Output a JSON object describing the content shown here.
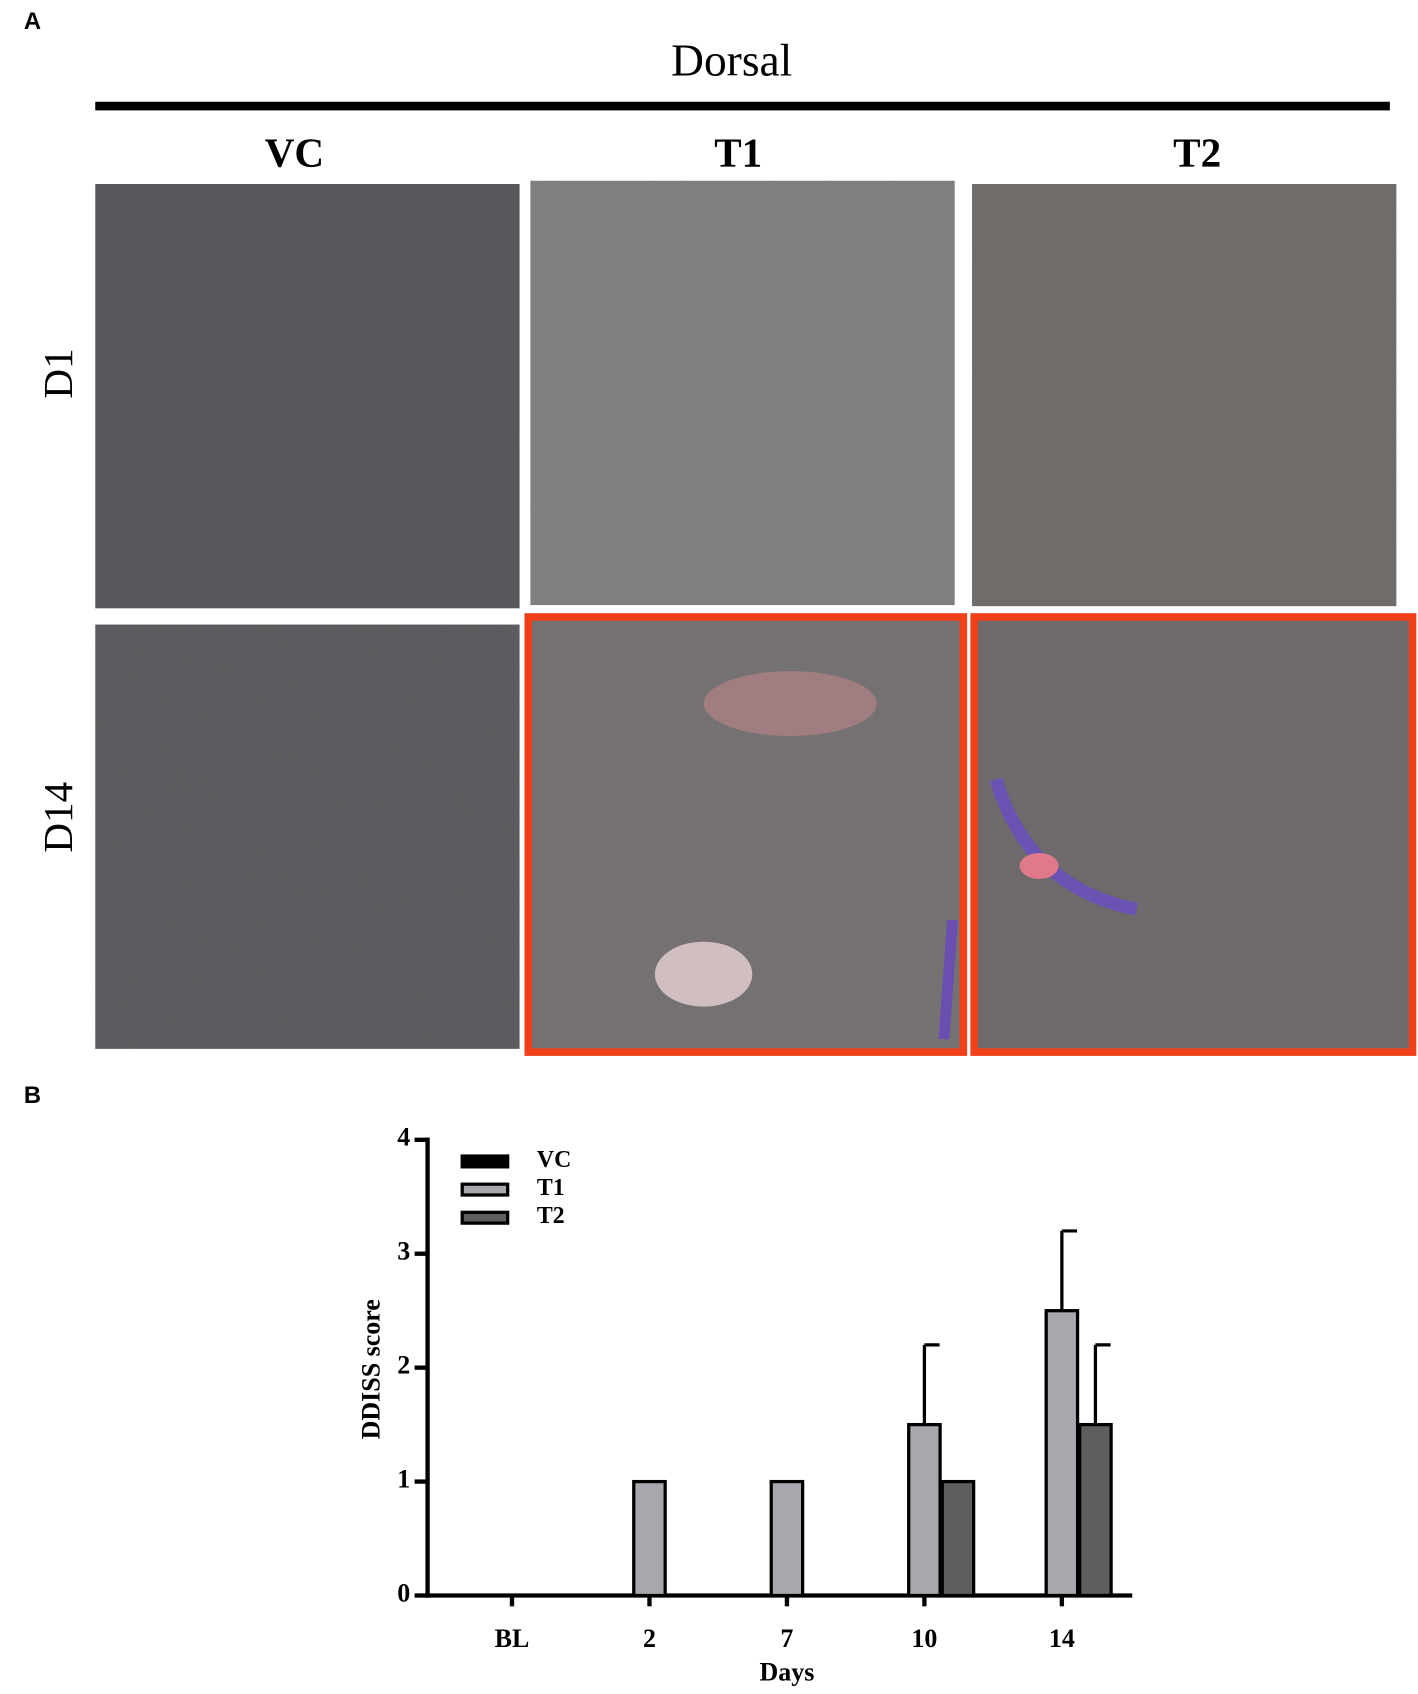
{
  "panel_a": {
    "label": "A",
    "title": "Dorsal",
    "columns": [
      "VC",
      "T1",
      "T2"
    ],
    "rows": [
      "D1",
      "D14"
    ]
  },
  "chart_data": {
    "type": "bar",
    "panel_label": "B",
    "x_label": "Days",
    "y_label": "DDISS score",
    "categories": [
      "BL",
      "2",
      "7",
      "10",
      "14"
    ],
    "series": [
      {
        "name": "VC",
        "color": "#000000",
        "values": [
          0,
          0,
          0,
          0,
          0
        ],
        "errors": [
          null,
          null,
          null,
          null,
          null
        ]
      },
      {
        "name": "T1",
        "color": "#a7a7ae",
        "values": [
          0,
          1,
          1,
          1.5,
          2.5
        ],
        "errors": [
          null,
          null,
          null,
          0.7,
          0.7
        ]
      },
      {
        "name": "T2",
        "color": "#5e5e5e",
        "values": [
          0,
          0,
          0,
          1,
          1.5
        ],
        "errors": [
          null,
          null,
          null,
          null,
          0.7
        ]
      }
    ],
    "ylim": [
      0,
      4
    ],
    "yticks": [
      0,
      1,
      2,
      3,
      4
    ],
    "grid": false,
    "legend": "top-left"
  }
}
